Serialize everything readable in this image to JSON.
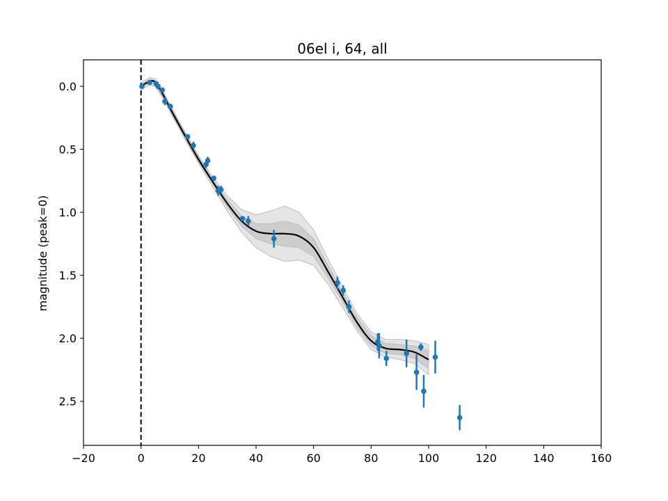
{
  "chart_data": {
    "type": "scatter",
    "title": "06el i, 64, all",
    "xlabel": "",
    "ylabel": "magnitude (peak=0)",
    "xlim": [
      -20,
      160
    ],
    "ylim": [
      2.85,
      -0.21
    ],
    "y_inverted": true,
    "grid": false,
    "x_ticks": [
      -20,
      0,
      20,
      40,
      60,
      80,
      100,
      120,
      140,
      160
    ],
    "x_tick_labels": [
      "−20",
      "0",
      "20",
      "40",
      "60",
      "80",
      "100",
      "120",
      "140",
      "160"
    ],
    "y_ticks": [
      0.0,
      0.5,
      1.0,
      1.5,
      2.0,
      2.5
    ],
    "y_tick_labels": [
      "0.0",
      "0.5",
      "1.0",
      "1.5",
      "2.0",
      "2.5"
    ],
    "reference_line": {
      "x": 0,
      "style": "dashed",
      "color": "#000000"
    },
    "observations": {
      "color": "#1f77b4",
      "points": [
        {
          "x": 0.3,
          "y": 0.0,
          "err": 0.02
        },
        {
          "x": 3.0,
          "y": -0.03,
          "err": 0.015
        },
        {
          "x": 5.3,
          "y": -0.02,
          "err": 0.015
        },
        {
          "x": 5.9,
          "y": 0.0,
          "err": 0.015
        },
        {
          "x": 7.4,
          "y": 0.03,
          "err": 0.02
        },
        {
          "x": 8.3,
          "y": 0.12,
          "err": 0.03
        },
        {
          "x": 10.2,
          "y": 0.16,
          "err": 0.02
        },
        {
          "x": 16.2,
          "y": 0.4,
          "err": 0.02
        },
        {
          "x": 18.2,
          "y": 0.47,
          "err": 0.03
        },
        {
          "x": 22.6,
          "y": 0.62,
          "err": 0.03
        },
        {
          "x": 23.2,
          "y": 0.59,
          "err": 0.03
        },
        {
          "x": 25.3,
          "y": 0.73,
          "err": 0.02
        },
        {
          "x": 26.8,
          "y": 0.83,
          "err": 0.04
        },
        {
          "x": 27.8,
          "y": 0.82,
          "err": 0.03
        },
        {
          "x": 35.3,
          "y": 1.05,
          "err": 0.02
        },
        {
          "x": 37.3,
          "y": 1.07,
          "err": 0.04
        },
        {
          "x": 46.2,
          "y": 1.21,
          "err": 0.07
        },
        {
          "x": 68.3,
          "y": 1.56,
          "err": 0.05
        },
        {
          "x": 70.3,
          "y": 1.62,
          "err": 0.04
        },
        {
          "x": 72.3,
          "y": 1.75,
          "err": 0.05
        },
        {
          "x": 82.3,
          "y": 2.03,
          "err": 0.07
        },
        {
          "x": 82.8,
          "y": 2.06,
          "err": 0.1
        },
        {
          "x": 85.3,
          "y": 2.16,
          "err": 0.06
        },
        {
          "x": 92.3,
          "y": 2.12,
          "err": 0.11
        },
        {
          "x": 95.8,
          "y": 2.27,
          "err": 0.14
        },
        {
          "x": 97.3,
          "y": 2.07,
          "err": 0.03
        },
        {
          "x": 98.3,
          "y": 2.42,
          "err": 0.13
        },
        {
          "x": 102.3,
          "y": 2.15,
          "err": 0.13
        },
        {
          "x": 110.8,
          "y": 2.63,
          "err": 0.1
        }
      ]
    },
    "fit": {
      "color": "#000000",
      "x": [
        0,
        3,
        5,
        8,
        10,
        15,
        20,
        25,
        30,
        35,
        40,
        45,
        50,
        55,
        60,
        65,
        70,
        75,
        80,
        85,
        90,
        95,
        100
      ],
      "y": [
        0.0,
        -0.04,
        -0.03,
        0.08,
        0.17,
        0.38,
        0.58,
        0.76,
        0.93,
        1.07,
        1.15,
        1.17,
        1.17,
        1.19,
        1.28,
        1.47,
        1.67,
        1.87,
        2.02,
        2.08,
        2.09,
        2.11,
        2.17
      ],
      "band_inner": [
        0.015,
        0.015,
        0.015,
        0.02,
        0.02,
        0.02,
        0.02,
        0.02,
        0.03,
        0.04,
        0.06,
        0.08,
        0.1,
        0.09,
        0.07,
        0.05,
        0.04,
        0.04,
        0.04,
        0.04,
        0.04,
        0.05,
        0.07
      ],
      "band_outer": [
        0.03,
        0.03,
        0.03,
        0.03,
        0.03,
        0.03,
        0.03,
        0.04,
        0.06,
        0.09,
        0.13,
        0.18,
        0.22,
        0.19,
        0.14,
        0.1,
        0.08,
        0.07,
        0.07,
        0.07,
        0.08,
        0.09,
        0.12
      ]
    }
  }
}
